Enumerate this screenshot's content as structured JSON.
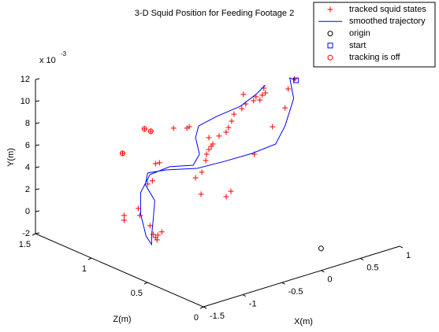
{
  "chart_data": {
    "type": "scatter3d",
    "title": "3-D Squid Position for Feeding Footage 2",
    "xlabel": "X(m)",
    "ylabel": "Y(m)",
    "zlabel": "Z(m)",
    "y_scale_base": "x 10",
    "y_scale_exponent": "-3",
    "xlim": [
      -1.5,
      1
    ],
    "xticks": [
      -1.5,
      -1,
      -0.5,
      0,
      0.5,
      1
    ],
    "ylim": [
      -2,
      12
    ],
    "yticks": [
      -2,
      0,
      2,
      4,
      6,
      8,
      10,
      12
    ],
    "zlim": [
      0,
      1.5
    ],
    "zticks": [
      0,
      0.5,
      1,
      1.5
    ],
    "legend": "top-right",
    "series": [
      {
        "name": "tracked squid states",
        "color": "#ff0000",
        "marker": "+",
        "x": [
          0.34,
          0.36,
          0.32,
          0.24,
          0.29,
          0.21,
          0.08,
          0.11,
          0.06,
          -0.04,
          -0.07,
          -0.11,
          -0.14,
          -0.23,
          -0.36,
          -0.31,
          -0.33,
          -0.36,
          -0.39,
          -0.4,
          -0.45,
          -0.53,
          -0.46,
          -0.64,
          -0.61,
          -0.81,
          0.45,
          0.22,
          0.61,
          0.65,
          0.73,
          -0.08,
          -0.14,
          -0.99,
          -1.04,
          -1.08,
          -1.14,
          -1.26,
          -1.24,
          -1.44,
          -1.44,
          -1.11,
          -1.07,
          -1.04,
          -1.01,
          -0.96,
          -1.02
        ],
        "y": [
          10.49,
          10.01,
          9.89,
          9.92,
          9.52,
          9.63,
          10.49,
          9.56,
          9.24,
          8.96,
          8.39,
          7.91,
          7.54,
          7.39,
          7.53,
          6.85,
          6.68,
          6.46,
          6.09,
          5.54,
          4.59,
          4.26,
          2.61,
          9.01,
          9.08,
          9.38,
          6.74,
          4.75,
          8.1,
          9.73,
          10.48,
          2.05,
          1.69,
          6.64,
          6.67,
          5.19,
          5.04,
          3.09,
          2.4,
          2.84,
          2.41,
          1.19,
          0.31,
          -0.04,
          0.11,
          0.29,
          -0.3
        ],
        "z": [
          0.75,
          0.75,
          0.75,
          0.75,
          0.75,
          0.75,
          0.75,
          0.75,
          0.75,
          0.75,
          0.75,
          0.75,
          0.75,
          0.75,
          0.75,
          0.75,
          0.75,
          0.75,
          0.75,
          0.75,
          0.75,
          0.75,
          0.75,
          0.75,
          0.75,
          0.75,
          0.75,
          0.75,
          0.75,
          0.75,
          0.75,
          0.75,
          0.75,
          0.75,
          0.75,
          0.75,
          0.75,
          0.75,
          0.75,
          0.75,
          0.75,
          0.75,
          0.75,
          0.75,
          0.75,
          0.75,
          0.75
        ]
      },
      {
        "name": "smoothed trajectory",
        "color": "#0000ff",
        "marker": "line",
        "x": [
          0.75,
          0.67,
          0.72,
          0.61,
          0.49,
          0.19,
          -0.16,
          -0.51,
          -0.91,
          -1.14,
          -1.17,
          -1.05,
          -1.07,
          -1.09,
          -1.09,
          -1.16,
          -1.23,
          -1.23,
          -1.11,
          -0.86,
          -0.56,
          -0.48,
          -0.53,
          -0.49,
          -0.26,
          0.04,
          0.24,
          0.36
        ],
        "y": [
          10.29,
          10.69,
          8.71,
          6.46,
          5.08,
          4.89,
          4.94,
          5.07,
          5.81,
          6.04,
          5.04,
          3.34,
          1.6,
          0.21,
          -0.57,
          0.36,
          2.52,
          4.45,
          5.83,
          5.99,
          5.47,
          6.29,
          7.91,
          8.89,
          9.24,
          9.5,
          10.14,
          10.72
        ],
        "z": [
          0.75,
          0.75,
          0.75,
          0.75,
          0.75,
          0.75,
          0.75,
          0.75,
          0.75,
          0.75,
          0.75,
          0.75,
          0.75,
          0.75,
          0.75,
          0.75,
          0.75,
          0.75,
          0.75,
          0.75,
          0.75,
          0.75,
          0.75,
          0.75,
          0.75,
          0.75,
          0.75,
          0.75
        ]
      },
      {
        "name": "origin",
        "color": "#000000",
        "marker": "o",
        "x": [
          0
        ],
        "y": [
          0
        ],
        "z": [
          0
        ]
      },
      {
        "name": "start",
        "color": "#0000ff",
        "marker": "s",
        "x": [
          0.75
        ],
        "y": [
          10.29
        ],
        "z": [
          0.75
        ]
      },
      {
        "name": "tracking is off",
        "color": "#ff0000",
        "marker": "o",
        "x": [
          -1.18,
          -1.1,
          -1.46
        ],
        "y": [
          10.13,
          9.74,
          8.53
        ],
        "z": [
          0.75,
          0.75,
          0.75
        ]
      }
    ]
  }
}
